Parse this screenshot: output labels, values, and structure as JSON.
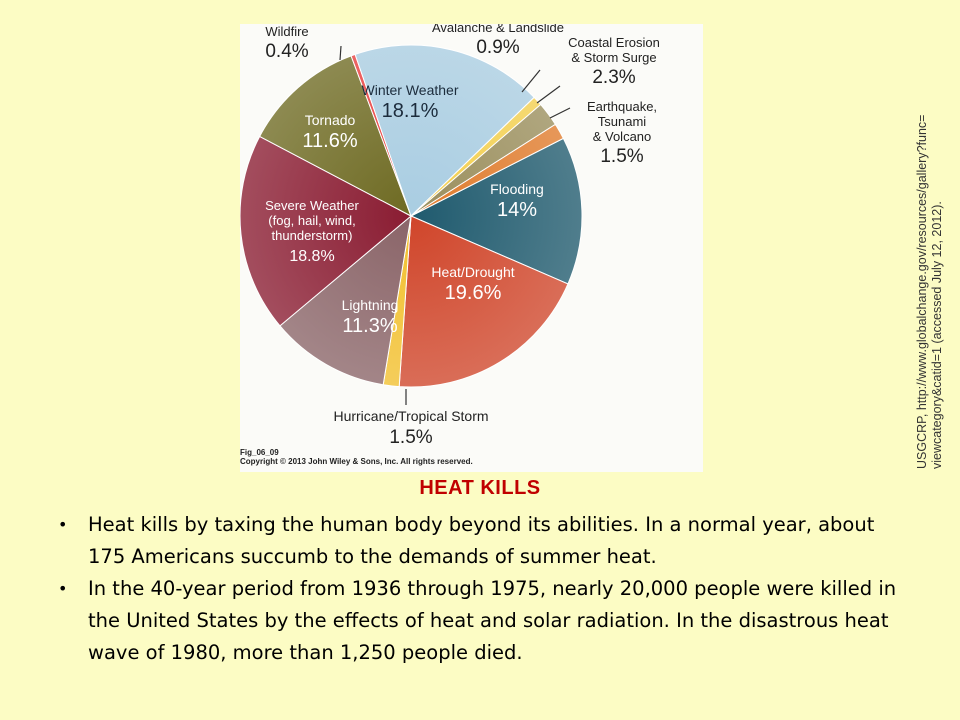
{
  "chart_data": {
    "type": "pie",
    "slices": [
      {
        "label": "Flooding",
        "value": 14,
        "value_text": "14%",
        "color": "#1f5a6e"
      },
      {
        "label": "Heat/Drought",
        "value": 19.6,
        "value_text": "19.6%",
        "color": "#d0452a"
      },
      {
        "label": "Hurricane/Tropical Storm",
        "value": 1.5,
        "value_text": "1.5%",
        "color": "#f2c02e"
      },
      {
        "label": "Lightning",
        "value": 11.3,
        "value_text": "11.3%",
        "color": "#8a6468"
      },
      {
        "label": "Severe Weather (fog, hail, wind, thunderstorm)",
        "value": 18.8,
        "value_text": "18.8%",
        "color": "#8a1c32"
      },
      {
        "label": "Tornado",
        "value": 11.6,
        "value_text": "11.6%",
        "color": "#6e6a22"
      },
      {
        "label": "Wildfire",
        "value": 0.4,
        "value_text": "0.4%",
        "color": "#e83a3a"
      },
      {
        "label": "Winter Weather",
        "value": 18.1,
        "value_text": "18.1%",
        "color": "#a9cde2"
      },
      {
        "label": "Avalanche & Landslide",
        "value": 0.9,
        "value_text": "0.9%",
        "color": "#f3cf4d"
      },
      {
        "label": "Coastal Erosion & Storm Surge",
        "value": 2.3,
        "value_text": "2.3%",
        "color": "#9a8e5c"
      },
      {
        "label": "Earthquake, Tsunami & Volcano",
        "value": 1.5,
        "value_text": "1.5%",
        "color": "#e07b2c"
      }
    ],
    "source_note": [
      "USGCRP, http://www.globalchange.gov/resources/gallery?func=",
      "viewcategory&catid=1 (accessed July 12, 2012)."
    ],
    "figure_id": "Fig_06_09",
    "copyright": "Copyright © 2013 John Wiley & Sons, Inc. All rights reserved."
  },
  "heading": "HEAT KILLS",
  "bullets": [
    "Heat kills by taxing the human body beyond its abilities. In a normal year, about 175 Americans succumb to the demands of summer heat.",
    "In the 40-year period from 1936 through 1975, nearly 20,000 people were killed in the United States by the effects of heat and solar radiation. In the disastrous heat wave of 1980, more than 1,250 people died."
  ],
  "colors": {
    "background": "#fcfcc4",
    "heading": "#c00000"
  }
}
